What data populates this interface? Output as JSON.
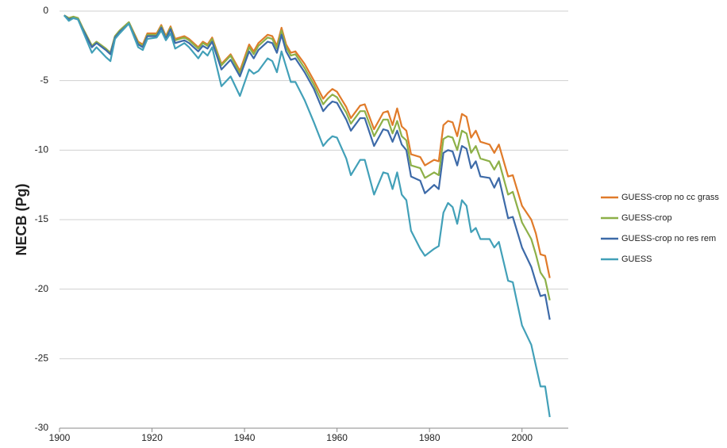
{
  "chart_data": {
    "type": "line",
    "y_label": "NECB (Pg)",
    "xlim": [
      1900,
      2010
    ],
    "xticks": [
      1900,
      1920,
      1940,
      1960,
      1980,
      2000
    ],
    "ylim": [
      -30,
      0
    ],
    "yticks": [
      0,
      -5,
      -10,
      -15,
      -20,
      -25,
      -30
    ],
    "grid": true,
    "legend": "right",
    "x": [
      1901,
      1902,
      1903,
      1904,
      1905,
      1907,
      1908,
      1910,
      1911,
      1912,
      1913,
      1915,
      1917,
      1918,
      1919,
      1921,
      1922,
      1923,
      1924,
      1925,
      1927,
      1928,
      1930,
      1931,
      1932,
      1933,
      1935,
      1937,
      1939,
      1941,
      1942,
      1943,
      1945,
      1946,
      1947,
      1948,
      1949,
      1950,
      1951,
      1953,
      1955,
      1957,
      1958,
      1959,
      1960,
      1962,
      1963,
      1965,
      1966,
      1968,
      1970,
      1971,
      1972,
      1973,
      1974,
      1975,
      1976,
      1978,
      1979,
      1981,
      1982,
      1983,
      1984,
      1985,
      1986,
      1987,
      1988,
      1989,
      1990,
      1991,
      1993,
      1994,
      1995,
      1997,
      1998,
      2000,
      2002,
      2003,
      2004,
      2005,
      2006
    ],
    "series": [
      {
        "name": "GUESS-crop no cc grass",
        "color": "#e07b2a",
        "values": [
          -0.3,
          -0.5,
          -0.4,
          -0.5,
          -1.2,
          -2.5,
          -2.2,
          -2.7,
          -3.0,
          -1.8,
          -1.4,
          -0.8,
          -2.2,
          -2.4,
          -1.6,
          -1.6,
          -1.0,
          -1.8,
          -1.1,
          -2.0,
          -1.8,
          -2.0,
          -2.6,
          -2.2,
          -2.4,
          -1.9,
          -3.8,
          -3.1,
          -4.3,
          -2.4,
          -2.9,
          -2.3,
          -1.7,
          -1.8,
          -2.5,
          -1.2,
          -2.4,
          -3.0,
          -2.9,
          -3.8,
          -5.0,
          -6.3,
          -5.9,
          -5.6,
          -5.8,
          -6.9,
          -7.7,
          -6.8,
          -6.7,
          -8.5,
          -7.3,
          -7.2,
          -8.2,
          -7.0,
          -8.3,
          -8.6,
          -10.3,
          -10.5,
          -11.1,
          -10.7,
          -10.8,
          -8.2,
          -7.9,
          -8.0,
          -9.0,
          -7.4,
          -7.6,
          -9.1,
          -8.6,
          -9.4,
          -9.6,
          -10.2,
          -9.6,
          -11.9,
          -11.8,
          -14.0,
          -15.0,
          -16.0,
          -17.5,
          -17.6,
          -19.2
        ]
      },
      {
        "name": "GUESS-crop",
        "color": "#8db048",
        "values": [
          -0.3,
          -0.5,
          -0.4,
          -0.5,
          -1.2,
          -2.5,
          -2.2,
          -2.7,
          -3.0,
          -1.8,
          -1.4,
          -0.8,
          -2.3,
          -2.5,
          -1.7,
          -1.7,
          -1.1,
          -1.9,
          -1.2,
          -2.1,
          -1.9,
          -2.1,
          -2.7,
          -2.3,
          -2.5,
          -2.0,
          -3.9,
          -3.2,
          -4.5,
          -2.6,
          -3.1,
          -2.5,
          -1.9,
          -2.0,
          -2.7,
          -1.4,
          -2.6,
          -3.2,
          -3.1,
          -4.1,
          -5.3,
          -6.7,
          -6.3,
          -6.0,
          -6.2,
          -7.3,
          -8.1,
          -7.2,
          -7.2,
          -9.0,
          -7.8,
          -7.8,
          -8.8,
          -7.9,
          -9.0,
          -9.3,
          -11.1,
          -11.3,
          -12.0,
          -11.6,
          -11.8,
          -9.2,
          -9.0,
          -9.1,
          -10.0,
          -8.6,
          -8.8,
          -10.2,
          -9.7,
          -10.6,
          -10.8,
          -11.4,
          -10.8,
          -13.2,
          -13.0,
          -15.2,
          -16.4,
          -17.5,
          -18.8,
          -19.3,
          -20.8
        ]
      },
      {
        "name": "GUESS-crop no res rem",
        "color": "#3d6aa8",
        "values": [
          -0.3,
          -0.6,
          -0.5,
          -0.6,
          -1.3,
          -2.6,
          -2.3,
          -2.8,
          -3.1,
          -1.9,
          -1.5,
          -0.9,
          -2.4,
          -2.6,
          -1.8,
          -1.8,
          -1.2,
          -2.0,
          -1.3,
          -2.3,
          -2.1,
          -2.3,
          -2.9,
          -2.5,
          -2.7,
          -2.2,
          -4.2,
          -3.5,
          -4.7,
          -2.9,
          -3.4,
          -2.8,
          -2.2,
          -2.3,
          -3.0,
          -1.7,
          -2.9,
          -3.5,
          -3.4,
          -4.4,
          -5.6,
          -7.2,
          -6.8,
          -6.5,
          -6.6,
          -7.8,
          -8.6,
          -7.7,
          -7.7,
          -9.7,
          -8.5,
          -8.6,
          -9.4,
          -8.6,
          -9.6,
          -10.0,
          -11.9,
          -12.2,
          -13.1,
          -12.5,
          -12.8,
          -10.2,
          -10.0,
          -10.1,
          -11.1,
          -9.7,
          -9.9,
          -11.3,
          -10.8,
          -11.9,
          -12.0,
          -12.7,
          -12.0,
          -14.9,
          -14.8,
          -17.0,
          -18.4,
          -19.5,
          -20.5,
          -20.4,
          -22.2
        ]
      },
      {
        "name": "GUESS",
        "color": "#42a0b8",
        "values": [
          -0.3,
          -0.7,
          -0.5,
          -0.6,
          -1.4,
          -3.0,
          -2.6,
          -3.3,
          -3.6,
          -2.0,
          -1.6,
          -0.9,
          -2.6,
          -2.8,
          -2.0,
          -1.9,
          -1.4,
          -2.1,
          -1.6,
          -2.7,
          -2.3,
          -2.6,
          -3.4,
          -2.9,
          -3.2,
          -2.6,
          -5.4,
          -4.7,
          -6.1,
          -4.2,
          -4.5,
          -4.3,
          -3.4,
          -3.6,
          -4.4,
          -2.9,
          -4.0,
          -5.1,
          -5.1,
          -6.4,
          -8.0,
          -9.7,
          -9.3,
          -9.0,
          -9.1,
          -10.6,
          -11.8,
          -10.7,
          -10.7,
          -13.2,
          -11.6,
          -11.7,
          -12.8,
          -11.6,
          -13.2,
          -13.6,
          -15.8,
          -17.1,
          -17.6,
          -17.1,
          -16.9,
          -14.5,
          -13.8,
          -14.1,
          -15.3,
          -13.6,
          -14.0,
          -15.9,
          -15.6,
          -16.4,
          -16.4,
          -17.0,
          -16.6,
          -19.4,
          -19.5,
          -22.6,
          -24.0,
          -25.5,
          -27.0,
          -27.0,
          -29.2
        ]
      }
    ]
  }
}
